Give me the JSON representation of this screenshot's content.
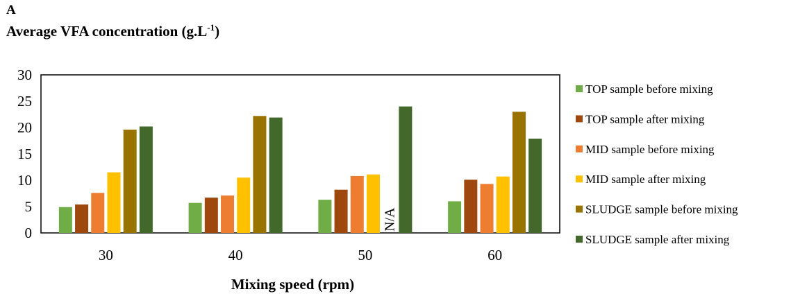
{
  "panel_label": "A",
  "title": {
    "text": "Average VFA concentration (g.L",
    "sup": "-1",
    "close": ")"
  },
  "chart_data": {
    "type": "bar",
    "xlabel": "Mixing speed (rpm)",
    "ylabel": "",
    "categories": [
      "30",
      "40",
      "50",
      "60"
    ],
    "ylim": [
      0,
      30
    ],
    "yticks": [
      0,
      5,
      10,
      15,
      20,
      25,
      30
    ],
    "grid": false,
    "legend_position": "right",
    "series": [
      {
        "name": "TOP sample before mixing",
        "color": "#70ad47",
        "values": [
          4.9,
          5.7,
          6.3,
          6.0
        ]
      },
      {
        "name": "TOP sample after mixing",
        "color": "#9e480e",
        "values": [
          5.4,
          6.7,
          8.2,
          10.1
        ]
      },
      {
        "name": "MID sample before mixing",
        "color": "#ed7d31",
        "values": [
          7.6,
          7.1,
          10.8,
          9.3
        ]
      },
      {
        "name": "MID sample after mixing",
        "color": "#ffc000",
        "values": [
          11.5,
          10.5,
          11.1,
          10.7
        ]
      },
      {
        "name": "SLUDGE sample before mixing",
        "color": "#997300",
        "values": [
          19.6,
          22.2,
          null,
          23.0
        ]
      },
      {
        "name": "SLUDGE sample after mixing",
        "color": "#43682b",
        "values": [
          20.2,
          21.9,
          24.0,
          17.9
        ]
      }
    ],
    "annotations": [
      {
        "text": "N/A",
        "category": "50",
        "series": "SLUDGE sample before mixing"
      }
    ]
  }
}
